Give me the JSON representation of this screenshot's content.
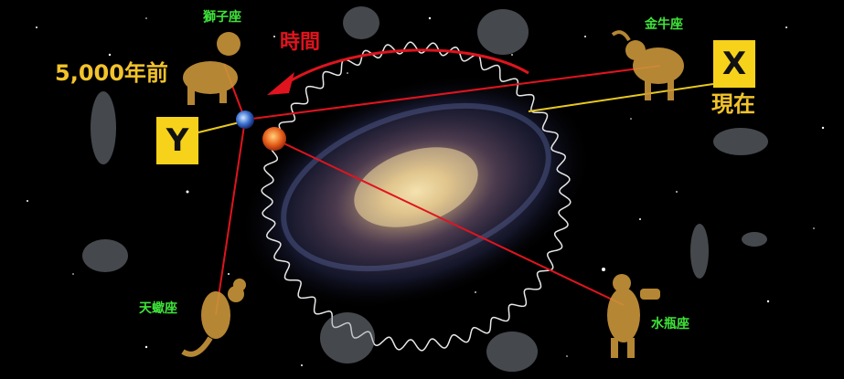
{
  "labels": {
    "leo": "獅子座",
    "taurus": "金牛座",
    "scorpio": "天蠍座",
    "aquarius": "水瓶座",
    "past": "5,000年前",
    "present": "現在",
    "time": "時間",
    "x_marker": "X",
    "y_marker": "Y"
  },
  "colors": {
    "background": "#000000",
    "constellation_text": "#3fe23a",
    "marker_box": "#f6d21b",
    "era_text": "#f2c32b",
    "axis_lines": "#e0141e",
    "pointer_line": "#e8c820"
  },
  "icons": [
    "galaxy",
    "earth",
    "sun",
    "leo-figure",
    "taurus-figure",
    "scorpio-figure",
    "aquarius-figure",
    "time-arrow"
  ]
}
